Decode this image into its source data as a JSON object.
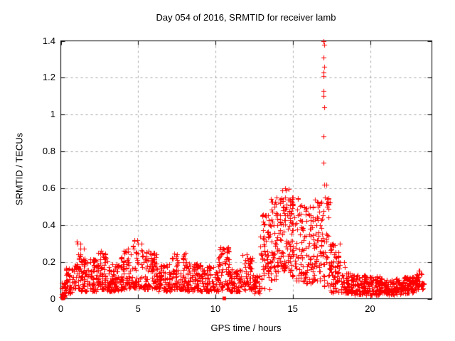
{
  "chart_data": {
    "type": "scatter",
    "title": "Day 054 of 2016, SRMTID for receiver lamb",
    "xlabel": "GPS time / hours",
    "ylabel": "SRMTID / TECUs",
    "xlim": [
      0,
      24
    ],
    "ylim": [
      0,
      1.4
    ],
    "xticks": [
      0,
      5,
      10,
      15,
      20
    ],
    "xtick_labels": [
      "0",
      "5",
      "10",
      "15",
      "20"
    ],
    "yticks": [
      0,
      0.2,
      0.4,
      0.6,
      0.8,
      1.0,
      1.2,
      1.4
    ],
    "ytick_labels": [
      "0",
      "0.2",
      "0.4",
      "0.6",
      "0.8",
      "1",
      "1.2",
      "1.4"
    ],
    "grid": {
      "style": "dashed",
      "axes": "both",
      "color": "#a8a8a8"
    },
    "legend": "none",
    "marker": {
      "shape": "plus",
      "color": "#ff0000",
      "size": 7
    },
    "border_color": "#000000",
    "seed": 54,
    "point_cloud_segments": [
      [
        0.0,
        0.3,
        0.0,
        0.1,
        18,
        1.3
      ],
      [
        0.3,
        0.9,
        0.03,
        0.17,
        45,
        1.5
      ],
      [
        0.9,
        1.3,
        0.05,
        0.31,
        35,
        1.5
      ],
      [
        1.3,
        2.3,
        0.04,
        0.22,
        75,
        1.6
      ],
      [
        2.3,
        3.0,
        0.05,
        0.26,
        55,
        1.6
      ],
      [
        3.0,
        3.9,
        0.04,
        0.19,
        68,
        1.5
      ],
      [
        3.9,
        4.6,
        0.05,
        0.27,
        55,
        1.6
      ],
      [
        4.6,
        5.3,
        0.06,
        0.32,
        55,
        1.6
      ],
      [
        5.3,
        6.2,
        0.05,
        0.26,
        68,
        1.6
      ],
      [
        6.2,
        7.2,
        0.04,
        0.19,
        75,
        1.5
      ],
      [
        7.2,
        8.1,
        0.05,
        0.25,
        68,
        1.6
      ],
      [
        8.1,
        9.2,
        0.04,
        0.2,
        80,
        1.5
      ],
      [
        9.2,
        10.2,
        0.04,
        0.18,
        72,
        1.5
      ],
      [
        10.2,
        10.9,
        0.05,
        0.28,
        52,
        1.6
      ],
      [
        10.9,
        11.7,
        0.04,
        0.16,
        58,
        1.5
      ],
      [
        11.7,
        12.4,
        0.05,
        0.24,
        52,
        1.6
      ],
      [
        12.4,
        12.9,
        0.03,
        0.13,
        36,
        1.4
      ],
      [
        12.9,
        13.5,
        0.05,
        0.47,
        50,
        1.3
      ],
      [
        13.5,
        14.1,
        0.1,
        0.55,
        55,
        1.2
      ],
      [
        14.1,
        14.8,
        0.15,
        0.6,
        65,
        1.2
      ],
      [
        14.8,
        15.6,
        0.1,
        0.55,
        70,
        1.2
      ],
      [
        15.6,
        16.4,
        0.08,
        0.5,
        70,
        1.2
      ],
      [
        16.4,
        17.4,
        0.06,
        0.55,
        85,
        1.2
      ],
      [
        17.4,
        18.1,
        0.03,
        0.32,
        55,
        1.4
      ],
      [
        18.1,
        19.0,
        0.03,
        0.14,
        65,
        1.3
      ],
      [
        19.0,
        20.0,
        0.02,
        0.13,
        75,
        1.3
      ],
      [
        20.0,
        21.0,
        0.02,
        0.12,
        75,
        1.3
      ],
      [
        21.0,
        22.0,
        0.02,
        0.11,
        75,
        1.3
      ],
      [
        22.0,
        23.0,
        0.03,
        0.12,
        75,
        1.3
      ],
      [
        23.0,
        23.45,
        0.05,
        0.16,
        34,
        1.2
      ]
    ],
    "spike": {
      "x": 17.0,
      "values": [
        1.4,
        1.38,
        1.31,
        1.26,
        1.23,
        1.21,
        1.13,
        1.1,
        1.04,
        0.88,
        0.74,
        0.62
      ]
    },
    "feature_points": [
      [
        1.02,
        0.31
      ],
      [
        1.06,
        0.3
      ],
      [
        1.5,
        0.27
      ],
      [
        2.7,
        0.25
      ],
      [
        4.35,
        0.27
      ],
      [
        4.95,
        0.32
      ],
      [
        5.0,
        0.3
      ],
      [
        5.7,
        0.26
      ],
      [
        7.5,
        0.24
      ],
      [
        10.45,
        0.27
      ],
      [
        12.0,
        0.24
      ],
      [
        13.05,
        0.45
      ],
      [
        13.1,
        0.42
      ],
      [
        13.95,
        0.55
      ],
      [
        14.5,
        0.6
      ],
      [
        14.53,
        0.59
      ],
      [
        15.35,
        0.54
      ],
      [
        16.1,
        0.5
      ],
      [
        17.15,
        0.62
      ],
      [
        17.2,
        0.5
      ],
      [
        18.3,
        0.2
      ],
      [
        18.35,
        0.17
      ]
    ],
    "zero_markers": [
      {
        "x": 0.12,
        "y": 0
      },
      {
        "x": 10.55,
        "y": 0
      }
    ]
  }
}
